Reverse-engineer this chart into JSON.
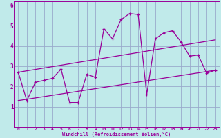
{
  "xlabel": "Windchill (Refroidissement éolien,°C)",
  "bg_color": "#c0eaea",
  "grid_color": "#99aacc",
  "line_color": "#990099",
  "xmin": -0.5,
  "xmax": 23.5,
  "ymin": 0,
  "ymax": 6.2,
  "yticks": [
    1,
    2,
    3,
    4,
    5,
    6
  ],
  "xticks": [
    0,
    1,
    2,
    3,
    4,
    5,
    6,
    7,
    8,
    9,
    10,
    11,
    12,
    13,
    14,
    15,
    16,
    17,
    18,
    19,
    20,
    21,
    22,
    23
  ],
  "line1_x": [
    0,
    1,
    2,
    3,
    4,
    5,
    6,
    7,
    8,
    9,
    10,
    11,
    12,
    13,
    14,
    15,
    16,
    17,
    18,
    19,
    20,
    21,
    22,
    23
  ],
  "line1_y": [
    2.7,
    1.3,
    2.2,
    2.3,
    2.4,
    2.85,
    1.2,
    1.2,
    2.6,
    2.45,
    4.85,
    4.35,
    5.3,
    5.6,
    5.55,
    1.6,
    4.35,
    4.65,
    4.75,
    4.2,
    3.5,
    3.55,
    2.65,
    2.8
  ],
  "line2_x": [
    0,
    23
  ],
  "line2_y": [
    2.7,
    4.3
  ],
  "line3_x": [
    0,
    23
  ],
  "line3_y": [
    1.3,
    2.8
  ]
}
